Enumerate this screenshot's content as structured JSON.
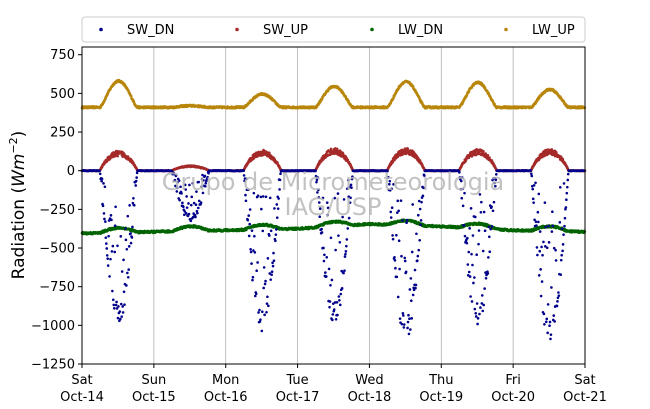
{
  "chart_data": {
    "type": "scatter",
    "ylabel_prefix": "Radiation (",
    "ylabel_unit": "Wm",
    "ylabel_exp": "−2",
    "ylabel_suffix": ")",
    "ylim": [
      -1250,
      800
    ],
    "yticks": [
      {
        "value": 750,
        "label": "750"
      },
      {
        "value": 500,
        "label": "500"
      },
      {
        "value": 250,
        "label": "250"
      },
      {
        "value": 0,
        "label": "0"
      },
      {
        "value": -250,
        "label": "−250"
      },
      {
        "value": -500,
        "label": "−500"
      },
      {
        "value": -750,
        "label": "−750"
      },
      {
        "value": -1000,
        "label": "−1000"
      },
      {
        "value": -1250,
        "label": "−1250"
      }
    ],
    "xlim": [
      "2023-10-14",
      "2023-10-21"
    ],
    "xticks": [
      {
        "day": "Sat",
        "date": "Oct-14"
      },
      {
        "day": "Sun",
        "date": "Oct-15"
      },
      {
        "day": "Mon",
        "date": "Oct-16"
      },
      {
        "day": "Tue",
        "date": "Oct-17"
      },
      {
        "day": "Wed",
        "date": "Oct-18"
      },
      {
        "day": "Thu",
        "date": "Oct-19"
      },
      {
        "day": "Fri",
        "date": "Oct-20"
      },
      {
        "day": "Sat",
        "date": "Oct-21"
      }
    ],
    "grid": "vertical",
    "legend_position": "top",
    "watermark": [
      "Grupo de Micrometeorologia",
      "IAG/USP"
    ],
    "series": [
      {
        "name": "SW_DN",
        "color": "#00008b",
        "daily_peak": [
          -1000,
          -330,
          -1050,
          -1000,
          -1100,
          -1000,
          -1120
        ],
        "night_value": 0
      },
      {
        "name": "SW_UP",
        "color": "#a52a2a",
        "daily_peak": [
          115,
          30,
          120,
          130,
          130,
          125,
          125
        ],
        "night_value": 0
      },
      {
        "name": "LW_DN",
        "color": "#006400",
        "daily_values": [
          -405,
          -395,
          -385,
          -375,
          -345,
          -360,
          -385,
          -395
        ],
        "daytime_bump": 30
      },
      {
        "name": "LW_UP",
        "color": "#b8860b",
        "daily_peak": [
          580,
          420,
          495,
          545,
          575,
          570,
          525
        ],
        "night_value": 410
      }
    ]
  }
}
